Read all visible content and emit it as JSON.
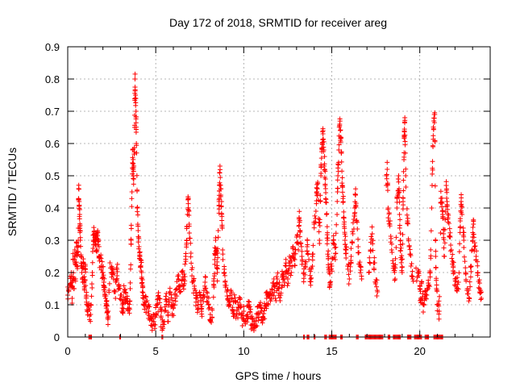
{
  "chart_data": {
    "type": "scatter",
    "title": "Day 172 of 2018, SRMTID for receiver areg",
    "xlabel": "GPS time / hours",
    "ylabel": "SRMTID / TECUs",
    "xlim": [
      0,
      24
    ],
    "ylim": [
      0,
      0.9
    ],
    "x_ticks": [
      0,
      5,
      10,
      15,
      20
    ],
    "x_tick_labels": [
      "0",
      "5",
      "10",
      "15",
      "20"
    ],
    "y_ticks": [
      0,
      0.1,
      0.2,
      0.3,
      0.4,
      0.5,
      0.6,
      0.7,
      0.8,
      0.9
    ],
    "y_tick_labels": [
      "0",
      "0.1",
      "0.2",
      "0.3",
      "0.4",
      "0.5",
      "0.6",
      "0.7",
      "0.8",
      "0.9"
    ],
    "grid": true,
    "marker": "+",
    "colors": {
      "series": "#ff0000",
      "grid": "#a0a0a0",
      "axes": "#000000"
    },
    "series": [
      {
        "name": "SRMTID",
        "points": [
          [
            0.0,
            0.13
          ],
          [
            0.1,
            0.16
          ],
          [
            0.2,
            0.2
          ],
          [
            0.25,
            0.12
          ],
          [
            0.3,
            0.24
          ],
          [
            0.35,
            0.15
          ],
          [
            0.4,
            0.27
          ],
          [
            0.45,
            0.18
          ],
          [
            0.5,
            0.28
          ],
          [
            0.55,
            0.22
          ],
          [
            0.6,
            0.3
          ],
          [
            0.62,
            0.46
          ],
          [
            0.65,
            0.42
          ],
          [
            0.68,
            0.38
          ],
          [
            0.7,
            0.33
          ],
          [
            0.75,
            0.25
          ],
          [
            0.8,
            0.2
          ],
          [
            0.85,
            0.17
          ],
          [
            0.9,
            0.23
          ],
          [
            0.95,
            0.15
          ],
          [
            1.0,
            0.22
          ],
          [
            1.05,
            0.12
          ],
          [
            1.1,
            0.1
          ],
          [
            1.2,
            0.09
          ],
          [
            1.3,
            0.07
          ],
          [
            1.4,
            0.2
          ],
          [
            1.45,
            0.3
          ],
          [
            1.5,
            0.32
          ],
          [
            1.55,
            0.29
          ],
          [
            1.6,
            0.31
          ],
          [
            1.65,
            0.27
          ],
          [
            1.7,
            0.33
          ],
          [
            1.75,
            0.3
          ],
          [
            1.8,
            0.25
          ],
          [
            1.9,
            0.22
          ],
          [
            2.0,
            0.2
          ],
          [
            2.05,
            0.17
          ],
          [
            2.1,
            0.14
          ],
          [
            2.15,
            0.12
          ],
          [
            2.2,
            0.1
          ],
          [
            2.25,
            0.08
          ],
          [
            2.3,
            0.06
          ],
          [
            2.4,
            0.23
          ],
          [
            2.5,
            0.2
          ],
          [
            2.6,
            0.18
          ],
          [
            2.7,
            0.14
          ],
          [
            2.8,
            0.21
          ],
          [
            2.9,
            0.16
          ],
          [
            3.0,
            0.13
          ],
          [
            3.1,
            0.1
          ],
          [
            3.15,
            0.08
          ],
          [
            3.2,
            0.14
          ],
          [
            3.3,
            0.12
          ],
          [
            3.4,
            0.11
          ],
          [
            3.5,
            0.09
          ],
          [
            3.55,
            0.15
          ],
          [
            3.6,
            0.3
          ],
          [
            3.65,
            0.45
          ],
          [
            3.7,
            0.58
          ],
          [
            3.72,
            0.52
          ],
          [
            3.75,
            0.49
          ],
          [
            3.8,
            0.65
          ],
          [
            3.82,
            0.8
          ],
          [
            3.85,
            0.75
          ],
          [
            3.88,
            0.7
          ],
          [
            3.9,
            0.6
          ],
          [
            3.95,
            0.4
          ],
          [
            4.0,
            0.33
          ],
          [
            4.05,
            0.28
          ],
          [
            4.1,
            0.25
          ],
          [
            4.15,
            0.22
          ],
          [
            4.2,
            0.2
          ],
          [
            4.25,
            0.16
          ],
          [
            4.3,
            0.12
          ],
          [
            4.4,
            0.1
          ],
          [
            4.5,
            0.09
          ],
          [
            4.6,
            0.08
          ],
          [
            4.7,
            0.06
          ],
          [
            4.8,
            0.05
          ],
          [
            4.9,
            0.04
          ],
          [
            5.0,
            0.07
          ],
          [
            5.1,
            0.1
          ],
          [
            5.2,
            0.12
          ],
          [
            5.3,
            0.06
          ],
          [
            5.4,
            0.04
          ],
          [
            5.5,
            0.08
          ],
          [
            5.6,
            0.11
          ],
          [
            5.7,
            0.07
          ],
          [
            5.8,
            0.14
          ],
          [
            5.9,
            0.1
          ],
          [
            6.0,
            0.09
          ],
          [
            6.1,
            0.12
          ],
          [
            6.2,
            0.15
          ],
          [
            6.3,
            0.18
          ],
          [
            6.4,
            0.14
          ],
          [
            6.5,
            0.2
          ],
          [
            6.6,
            0.16
          ],
          [
            6.7,
            0.25
          ],
          [
            6.75,
            0.3
          ],
          [
            6.8,
            0.38
          ],
          [
            6.85,
            0.43
          ],
          [
            6.9,
            0.35
          ],
          [
            7.0,
            0.26
          ],
          [
            7.1,
            0.17
          ],
          [
            7.2,
            0.15
          ],
          [
            7.3,
            0.12
          ],
          [
            7.4,
            0.1
          ],
          [
            7.5,
            0.13
          ],
          [
            7.6,
            0.08
          ],
          [
            7.7,
            0.11
          ],
          [
            7.8,
            0.17
          ],
          [
            7.9,
            0.14
          ],
          [
            8.0,
            0.1
          ],
          [
            8.1,
            0.07
          ],
          [
            8.2,
            0.06
          ],
          [
            8.3,
            0.16
          ],
          [
            8.35,
            0.24
          ],
          [
            8.4,
            0.3
          ],
          [
            8.45,
            0.26
          ],
          [
            8.5,
            0.2
          ],
          [
            8.55,
            0.33
          ],
          [
            8.6,
            0.42
          ],
          [
            8.62,
            0.47
          ],
          [
            8.65,
            0.53
          ],
          [
            8.7,
            0.44
          ],
          [
            8.75,
            0.38
          ],
          [
            8.8,
            0.27
          ],
          [
            8.9,
            0.2
          ],
          [
            9.0,
            0.16
          ],
          [
            9.1,
            0.12
          ],
          [
            9.2,
            0.1
          ],
          [
            9.3,
            0.14
          ],
          [
            9.4,
            0.08
          ],
          [
            9.5,
            0.11
          ],
          [
            9.6,
            0.07
          ],
          [
            9.7,
            0.09
          ],
          [
            9.8,
            0.12
          ],
          [
            9.9,
            0.06
          ],
          [
            10.0,
            0.08
          ],
          [
            10.1,
            0.05
          ],
          [
            10.2,
            0.07
          ],
          [
            10.3,
            0.1
          ],
          [
            10.4,
            0.06
          ],
          [
            10.5,
            0.04
          ],
          [
            10.6,
            0.03
          ],
          [
            10.7,
            0.05
          ],
          [
            10.8,
            0.07
          ],
          [
            10.9,
            0.1
          ],
          [
            11.0,
            0.08
          ],
          [
            11.1,
            0.06
          ],
          [
            11.2,
            0.09
          ],
          [
            11.3,
            0.12
          ],
          [
            11.4,
            0.1
          ],
          [
            11.5,
            0.14
          ],
          [
            11.6,
            0.13
          ],
          [
            11.7,
            0.16
          ],
          [
            11.8,
            0.12
          ],
          [
            11.9,
            0.18
          ],
          [
            12.0,
            0.15
          ],
          [
            12.1,
            0.13
          ],
          [
            12.2,
            0.19
          ],
          [
            12.3,
            0.16
          ],
          [
            12.4,
            0.22
          ],
          [
            12.5,
            0.18
          ],
          [
            12.6,
            0.25
          ],
          [
            12.7,
            0.2
          ],
          [
            12.8,
            0.28
          ],
          [
            12.9,
            0.24
          ],
          [
            13.0,
            0.31
          ],
          [
            13.1,
            0.27
          ],
          [
            13.15,
            0.37
          ],
          [
            13.2,
            0.33
          ],
          [
            13.3,
            0.25
          ],
          [
            13.4,
            0.2
          ],
          [
            13.5,
            0.22
          ],
          [
            13.6,
            0.28
          ],
          [
            13.7,
            0.24
          ],
          [
            13.8,
            0.18
          ],
          [
            13.9,
            0.25
          ],
          [
            14.0,
            0.35
          ],
          [
            14.1,
            0.39
          ],
          [
            14.15,
            0.45
          ],
          [
            14.2,
            0.48
          ],
          [
            14.3,
            0.3
          ],
          [
            14.35,
            0.42
          ],
          [
            14.4,
            0.53
          ],
          [
            14.45,
            0.6
          ],
          [
            14.5,
            0.63
          ],
          [
            14.55,
            0.58
          ],
          [
            14.6,
            0.52
          ],
          [
            14.65,
            0.46
          ],
          [
            14.7,
            0.38
          ],
          [
            14.75,
            0.3
          ],
          [
            14.8,
            0.25
          ],
          [
            14.85,
            0.2
          ],
          [
            14.9,
            0.16
          ],
          [
            15.0,
            0.22
          ],
          [
            15.1,
            0.3
          ],
          [
            15.2,
            0.24
          ],
          [
            15.3,
            0.38
          ],
          [
            15.35,
            0.5
          ],
          [
            15.4,
            0.58
          ],
          [
            15.45,
            0.66
          ],
          [
            15.5,
            0.62
          ],
          [
            15.55,
            0.57
          ],
          [
            15.6,
            0.47
          ],
          [
            15.65,
            0.42
          ],
          [
            15.7,
            0.35
          ],
          [
            15.75,
            0.3
          ],
          [
            15.8,
            0.27
          ],
          [
            15.9,
            0.22
          ],
          [
            16.0,
            0.18
          ],
          [
            16.1,
            0.25
          ],
          [
            16.2,
            0.32
          ],
          [
            16.3,
            0.4
          ],
          [
            16.35,
            0.44
          ],
          [
            16.4,
            0.36
          ],
          [
            16.5,
            0.28
          ],
          [
            16.6,
            0.22
          ],
          [
            16.7,
            0.18
          ],
          [
            17.1,
            0.2
          ],
          [
            17.2,
            0.27
          ],
          [
            17.3,
            0.32
          ],
          [
            17.4,
            0.23
          ],
          [
            17.5,
            0.17
          ],
          [
            17.6,
            0.14
          ],
          [
            18.1,
            0.47
          ],
          [
            18.15,
            0.52
          ],
          [
            18.2,
            0.4
          ],
          [
            18.3,
            0.35
          ],
          [
            18.4,
            0.27
          ],
          [
            18.5,
            0.22
          ],
          [
            18.6,
            0.18
          ],
          [
            18.7,
            0.4
          ],
          [
            18.75,
            0.44
          ],
          [
            18.8,
            0.5
          ],
          [
            18.85,
            0.38
          ],
          [
            18.9,
            0.3
          ],
          [
            18.95,
            0.24
          ],
          [
            19.0,
            0.2
          ],
          [
            19.05,
            0.42
          ],
          [
            19.1,
            0.55
          ],
          [
            19.12,
            0.62
          ],
          [
            19.15,
            0.68
          ],
          [
            19.2,
            0.5
          ],
          [
            19.3,
            0.36
          ],
          [
            19.4,
            0.28
          ],
          [
            19.5,
            0.22
          ],
          [
            19.6,
            0.18
          ],
          [
            19.9,
            0.2
          ],
          [
            20.0,
            0.15
          ],
          [
            20.05,
            0.12
          ],
          [
            20.1,
            0.17
          ],
          [
            20.2,
            0.1
          ],
          [
            20.3,
            0.14
          ],
          [
            20.4,
            0.13
          ],
          [
            20.5,
            0.16
          ],
          [
            20.6,
            0.2
          ],
          [
            20.7,
            0.47
          ],
          [
            20.75,
            0.59
          ],
          [
            20.8,
            0.67
          ],
          [
            20.85,
            0.69
          ],
          [
            20.9,
            0.25
          ],
          [
            20.95,
            0.15
          ],
          [
            21.0,
            0.1
          ],
          [
            21.1,
            0.08
          ],
          [
            21.2,
            0.43
          ],
          [
            21.3,
            0.38
          ],
          [
            21.35,
            0.32
          ],
          [
            21.4,
            0.25
          ],
          [
            21.5,
            0.47
          ],
          [
            21.55,
            0.42
          ],
          [
            21.6,
            0.37
          ],
          [
            21.7,
            0.31
          ],
          [
            21.8,
            0.27
          ],
          [
            21.9,
            0.22
          ],
          [
            22.0,
            0.18
          ],
          [
            22.1,
            0.15
          ],
          [
            22.2,
            0.17
          ],
          [
            22.3,
            0.36
          ],
          [
            22.35,
            0.42
          ],
          [
            22.4,
            0.38
          ],
          [
            22.5,
            0.3
          ],
          [
            22.6,
            0.2
          ],
          [
            22.7,
            0.15
          ],
          [
            22.8,
            0.12
          ],
          [
            22.9,
            0.22
          ],
          [
            23.0,
            0.31
          ],
          [
            23.05,
            0.35
          ],
          [
            23.1,
            0.28
          ],
          [
            23.2,
            0.25
          ],
          [
            23.3,
            0.2
          ],
          [
            23.4,
            0.15
          ],
          [
            23.5,
            0.12
          ]
        ],
        "zero_runs": [
          [
            1.2,
            1.35
          ],
          [
            2.95,
            3.0
          ],
          [
            5.35,
            5.4
          ],
          [
            13.4,
            13.45
          ],
          [
            13.6,
            13.7
          ],
          [
            14.0,
            14.05
          ],
          [
            14.6,
            14.7
          ],
          [
            14.85,
            15.25
          ],
          [
            15.5,
            15.6
          ],
          [
            16.4,
            16.5
          ],
          [
            16.9,
            17.9
          ],
          [
            18.2,
            18.3
          ],
          [
            18.5,
            18.9
          ],
          [
            19.3,
            19.5
          ],
          [
            19.7,
            20.1
          ],
          [
            20.3,
            20.5
          ],
          [
            20.8,
            21.3
          ]
        ]
      }
    ]
  }
}
